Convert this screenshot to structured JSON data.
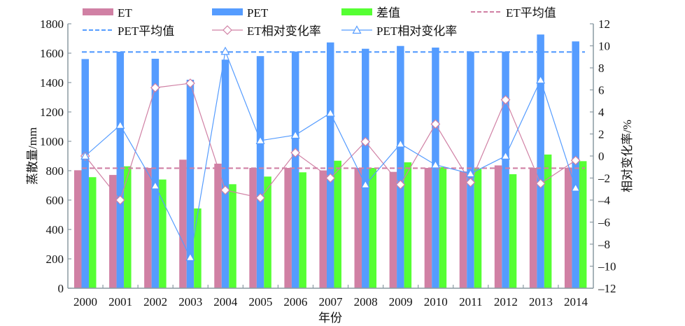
{
  "chart_data": {
    "type": "bar",
    "title": "",
    "xlabel": "年份",
    "ylabel": "蒸散量/mm",
    "y2label": "相对变化率/%",
    "ylim": [
      0,
      1800
    ],
    "yticks": [
      0,
      200,
      400,
      600,
      800,
      1000,
      1200,
      1400,
      1600,
      1800
    ],
    "y2lim": [
      -12,
      12
    ],
    "y2ticks": [
      -12,
      -10,
      -8,
      -6,
      -4,
      -2,
      0,
      2,
      4,
      6,
      8,
      10,
      12
    ],
    "y2ticklabels": [
      "–12",
      "–10",
      "–8",
      "–6",
      "–4",
      "–2",
      "0",
      "2",
      "4",
      "6",
      "8",
      "10",
      "12"
    ],
    "grid": false,
    "legend_position": "top",
    "categories": [
      "2000",
      "2001",
      "2002",
      "2003",
      "2004",
      "2005",
      "2006",
      "2007",
      "2008",
      "2009",
      "2010",
      "2011",
      "2012",
      "2013",
      "2014"
    ],
    "series": [
      {
        "name": "ET",
        "kind": "bar",
        "axis": "left",
        "color": "#D080A4",
        "values": [
          803,
          771,
          819,
          875,
          848,
          819,
          819,
          802,
          819,
          792,
          819,
          795,
          836,
          819,
          819
        ]
      },
      {
        "name": "PET",
        "kind": "bar",
        "axis": "left",
        "color": "#559CFF",
        "values": [
          1560,
          1610,
          1562,
          1419,
          1556,
          1580,
          1611,
          1673,
          1630,
          1649,
          1638,
          1611,
          1611,
          1727,
          1680
        ]
      },
      {
        "name": "差值",
        "kind": "bar",
        "axis": "left",
        "color": "#55FF33",
        "values": [
          756,
          830,
          740,
          543,
          708,
          760,
          789,
          868,
          819,
          857,
          824,
          814,
          776,
          910,
          865
        ]
      },
      {
        "name": "ET平均值",
        "kind": "hline",
        "axis": "left",
        "color": "#D080A4",
        "value": 817
      },
      {
        "name": "PET平均值",
        "kind": "hline",
        "axis": "left",
        "color": "#559CFF",
        "value": 1608
      },
      {
        "name": "ET相对变化率",
        "kind": "line",
        "marker": "diamond",
        "axis": "right",
        "color": "#D080A4",
        "values": [
          0.0,
          -4.0,
          6.2,
          6.6,
          -3.1,
          -3.8,
          0.3,
          -2.0,
          1.3,
          -2.6,
          2.9,
          -2.4,
          5.1,
          -2.5,
          -0.4
        ]
      },
      {
        "name": "PET相对变化率",
        "kind": "line",
        "marker": "triangle",
        "axis": "right",
        "color": "#559CFF",
        "values": [
          0.0,
          2.8,
          -2.7,
          -9.2,
          9.5,
          1.4,
          1.9,
          3.9,
          -2.6,
          1.1,
          -0.8,
          -1.6,
          0.0,
          6.9,
          -2.9
        ]
      }
    ],
    "legend": [
      {
        "label": "ET",
        "type": "bar",
        "series": 0
      },
      {
        "label": "PET",
        "type": "bar",
        "series": 1
      },
      {
        "label": "差值",
        "type": "bar",
        "series": 2
      },
      {
        "label": "ET平均值",
        "type": "hline",
        "series": 3
      },
      {
        "label": "PET平均值",
        "type": "hline",
        "series": 4
      },
      {
        "label": "ET相对变化率",
        "type": "line-diamond",
        "series": 5
      },
      {
        "label": "PET相对变化率",
        "type": "line-triangle",
        "series": 6
      }
    ],
    "axis_color": "#8A9AA2"
  }
}
